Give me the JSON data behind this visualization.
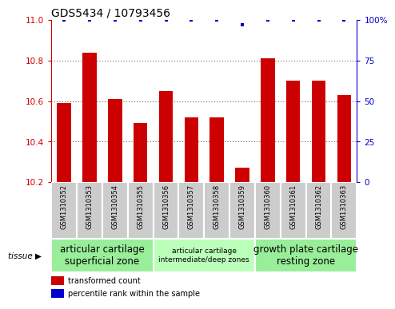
{
  "title": "GDS5434 / 10793456",
  "samples": [
    "GSM1310352",
    "GSM1310353",
    "GSM1310354",
    "GSM1310355",
    "GSM1310356",
    "GSM1310357",
    "GSM1310358",
    "GSM1310359",
    "GSM1310360",
    "GSM1310361",
    "GSM1310362",
    "GSM1310363"
  ],
  "bar_values": [
    10.59,
    10.84,
    10.61,
    10.49,
    10.65,
    10.52,
    10.52,
    10.27,
    10.81,
    10.7,
    10.7,
    10.63
  ],
  "percentile_values": [
    100,
    100,
    100,
    100,
    100,
    100,
    100,
    97,
    100,
    100,
    100,
    100
  ],
  "bar_color": "#cc0000",
  "percentile_color": "#0000cc",
  "ylim_left": [
    10.2,
    11.0
  ],
  "ylim_right": [
    0,
    100
  ],
  "yticks_left": [
    10.2,
    10.4,
    10.6,
    10.8,
    11.0
  ],
  "yticks_right": [
    0,
    25,
    50,
    75,
    100
  ],
  "ylabel_right_labels": [
    "0",
    "25",
    "50",
    "75",
    "100%"
  ],
  "groups": [
    {
      "label": "articular cartilage\nsuperficial zone",
      "start": 0,
      "end": 4,
      "color": "#99ee99",
      "font_size": 8.5
    },
    {
      "label": "articular cartilage\nintermediate/deep zones",
      "start": 4,
      "end": 8,
      "color": "#bbffbb",
      "font_size": 6.5
    },
    {
      "label": "growth plate cartilage\nresting zone",
      "start": 8,
      "end": 12,
      "color": "#99ee99",
      "font_size": 8.5
    }
  ],
  "tissue_label": "tissue",
  "legend_bar_label": "transformed count",
  "legend_pct_label": "percentile rank within the sample",
  "bar_width": 0.55,
  "xticklabel_fontsize": 6.0,
  "yticklabel_fontsize": 7.5,
  "title_fontsize": 10,
  "samp_box_color": "#cccccc",
  "samp_box_edge_color": "white"
}
